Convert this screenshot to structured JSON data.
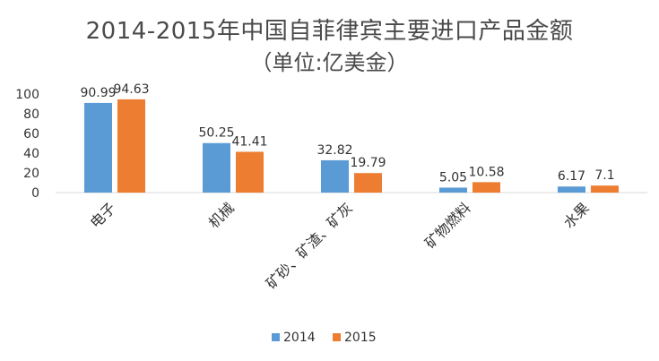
{
  "chart_data": {
    "type": "bar",
    "title": "2014-2015年中国自菲律宾主要进口产品金额",
    "subtitle": "（单位:亿美金）",
    "categories": [
      "电子",
      "机械",
      "矿砂、矿渣、矿灰",
      "矿物燃料",
      "水果"
    ],
    "series": [
      {
        "name": "2014",
        "values": [
          90.99,
          50.25,
          32.82,
          5.05,
          6.17
        ],
        "labels": [
          "90.99",
          "50.25",
          "32.82",
          "5.05",
          "6.17"
        ],
        "color": "#5B9BD5"
      },
      {
        "name": "2015",
        "values": [
          94.63,
          41.41,
          19.79,
          10.58,
          7.1
        ],
        "labels": [
          "94.63",
          "41.41",
          "19.79",
          "10.58",
          "7.1"
        ],
        "color": "#ED7D31"
      }
    ],
    "ylim": [
      0,
      100
    ],
    "yticks": [
      "0",
      "20",
      "40",
      "60",
      "80",
      "100"
    ],
    "xlabel": "",
    "ylabel": "",
    "grid": false,
    "legend": "bottom"
  }
}
